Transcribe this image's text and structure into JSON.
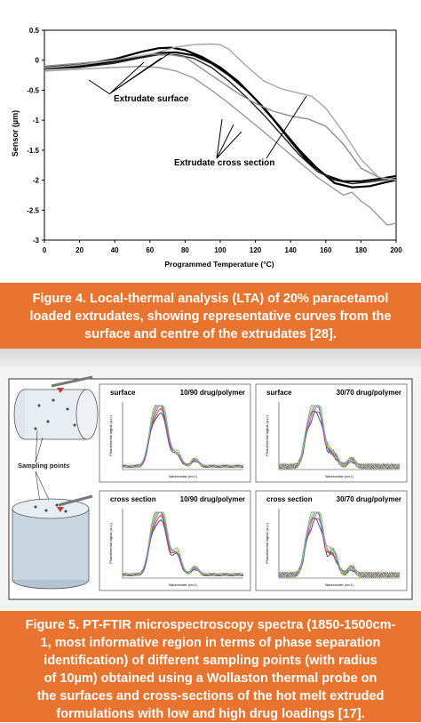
{
  "figure4": {
    "chart_data": {
      "type": "line",
      "xlabel": "Programmed Temperature (°C)",
      "ylabel": "Sensor (µm)",
      "xlim": [
        0,
        200
      ],
      "ylim": [
        -3,
        0.5
      ],
      "xticks": [
        "0",
        "20",
        "40",
        "60",
        "80",
        "100",
        "120",
        "140",
        "160",
        "180",
        "200"
      ],
      "yticks": [
        "0.5",
        "0",
        "-0.5",
        "-1",
        "-1.5",
        "-2",
        "-2.5",
        "-3"
      ],
      "annotations": [
        "Extrudate surface",
        "Extrudate cross section"
      ],
      "series": [
        {
          "color": "#000000",
          "width": 2.2,
          "x": [
            0,
            20,
            40,
            55,
            65,
            72,
            80,
            90,
            100,
            110,
            120,
            130,
            140,
            150,
            160,
            170,
            180,
            190,
            200
          ],
          "y": [
            -0.12,
            -0.08,
            0.02,
            0.14,
            0.2,
            0.21,
            0.17,
            0.05,
            -0.12,
            -0.35,
            -0.65,
            -0.98,
            -1.35,
            -1.7,
            -1.92,
            -2.02,
            -2.02,
            -1.98,
            -1.93
          ]
        },
        {
          "color": "#000000",
          "width": 2.2,
          "x": [
            0,
            20,
            40,
            55,
            65,
            75,
            85,
            95,
            105,
            115,
            125,
            135,
            145,
            155,
            165,
            175,
            185,
            195,
            200
          ],
          "y": [
            -0.13,
            -0.1,
            -0.02,
            0.06,
            0.12,
            0.13,
            0.08,
            -0.05,
            -0.25,
            -0.5,
            -0.8,
            -1.15,
            -1.5,
            -1.8,
            -2.05,
            -2.12,
            -2.1,
            -2.03,
            -2.0
          ]
        },
        {
          "color": "#222222",
          "width": 1.4,
          "x": [
            0,
            20,
            40,
            55,
            65,
            75,
            85,
            95,
            105,
            115,
            125,
            135,
            145,
            155,
            165,
            175,
            185,
            195,
            200
          ],
          "y": [
            -0.15,
            -0.12,
            -0.05,
            0.04,
            0.09,
            0.09,
            0.03,
            -0.12,
            -0.35,
            -0.62,
            -0.92,
            -1.25,
            -1.58,
            -1.85,
            -2.0,
            -2.06,
            -2.03,
            -1.99,
            -1.97
          ]
        },
        {
          "color": "#8c8c8c",
          "width": 1.4,
          "x": [
            0,
            20,
            40,
            60,
            70,
            80,
            90,
            100,
            110,
            120,
            130,
            140,
            150,
            160,
            170,
            180,
            190,
            200
          ],
          "y": [
            -0.1,
            -0.05,
            0.0,
            0.1,
            0.1,
            0.05,
            -0.15,
            -0.35,
            -0.55,
            -0.72,
            -0.85,
            -0.93,
            -0.98,
            -1.1,
            -1.4,
            -1.8,
            -1.95,
            -2.0
          ]
        },
        {
          "color": "#9a9a9a",
          "width": 1.4,
          "x": [
            0,
            20,
            40,
            55,
            65,
            75,
            85,
            95,
            105,
            115,
            125,
            135,
            145,
            150,
            155,
            160,
            165,
            170,
            175,
            180,
            185,
            190,
            195,
            200
          ],
          "y": [
            -0.18,
            -0.15,
            -0.12,
            -0.1,
            -0.12,
            -0.18,
            -0.3,
            -0.5,
            -0.72,
            -0.96,
            -1.2,
            -1.45,
            -1.7,
            -1.82,
            -1.95,
            -2.05,
            -2.15,
            -2.25,
            -2.2,
            -2.35,
            -2.45,
            -2.6,
            -2.75,
            -2.72
          ]
        },
        {
          "color": "#a6a6a6",
          "width": 1.4,
          "x": [
            0,
            20,
            40,
            60,
            75,
            85,
            95,
            100,
            105,
            115,
            125,
            135,
            145,
            152,
            160,
            170,
            180,
            190,
            200
          ],
          "y": [
            -0.13,
            -0.08,
            0.0,
            0.1,
            0.22,
            0.26,
            0.27,
            0.26,
            0.18,
            -0.1,
            -0.35,
            -0.48,
            -0.55,
            -0.6,
            -0.8,
            -1.2,
            -1.65,
            -1.95,
            -2.0
          ]
        }
      ]
    },
    "caption": [
      "Figure 4. Local-thermal analysis (LTA) of 20% paracetamol",
      "loaded extrudates, showing representative curves from the",
      "surface and centre of the extrudates [28]."
    ]
  },
  "figure5": {
    "illustration": {
      "label": "Sampling points"
    },
    "panels": [
      {
        "location": "surface",
        "composition": "10/90 drug/polymer",
        "ylabel": "Photothermal signal (a.u.)",
        "xlabel": "Wavenumber (cm-1)",
        "chart_data": {
          "type": "line",
          "series_count": 6
        }
      },
      {
        "location": "surface",
        "composition": "30/70 drug/polymer",
        "ylabel": "Photothermal signal (a.u.)",
        "xlabel": "Wavenumber (cm-1)",
        "chart_data": {
          "type": "line",
          "series_count": 6
        }
      },
      {
        "location": "cross section",
        "composition": "10/90 drug/polymer",
        "ylabel": "Photothermal signal (a.u.)",
        "xlabel": "Wavenumber (cm-1)",
        "chart_data": {
          "type": "line",
          "series_count": 6
        }
      },
      {
        "location": "cross section",
        "composition": "30/70 drug/polymer",
        "ylabel": "Photothermal signal (a.u.)",
        "xlabel": "Wavenumber (cm-1)",
        "chart_data": {
          "type": "line",
          "series_count": 6
        }
      }
    ],
    "spectrum_colors": [
      "#2f3b9e",
      "#d13b3b",
      "#b04fb0",
      "#3c9a46",
      "#d9c23a",
      "#6fa8d8"
    ],
    "caption": [
      "Figure 5. PT-FTIR microspectroscopy spectra (1850-1500cm-",
      "1, most informative region in terms of phase separation",
      "identification) of different sampling points (with radius",
      "of 10µm) obtained using a Wollaston thermal probe on",
      "the surfaces and cross-sections of the hot melt extruded",
      "formulations with low and high drug loadings [17]."
    ]
  }
}
